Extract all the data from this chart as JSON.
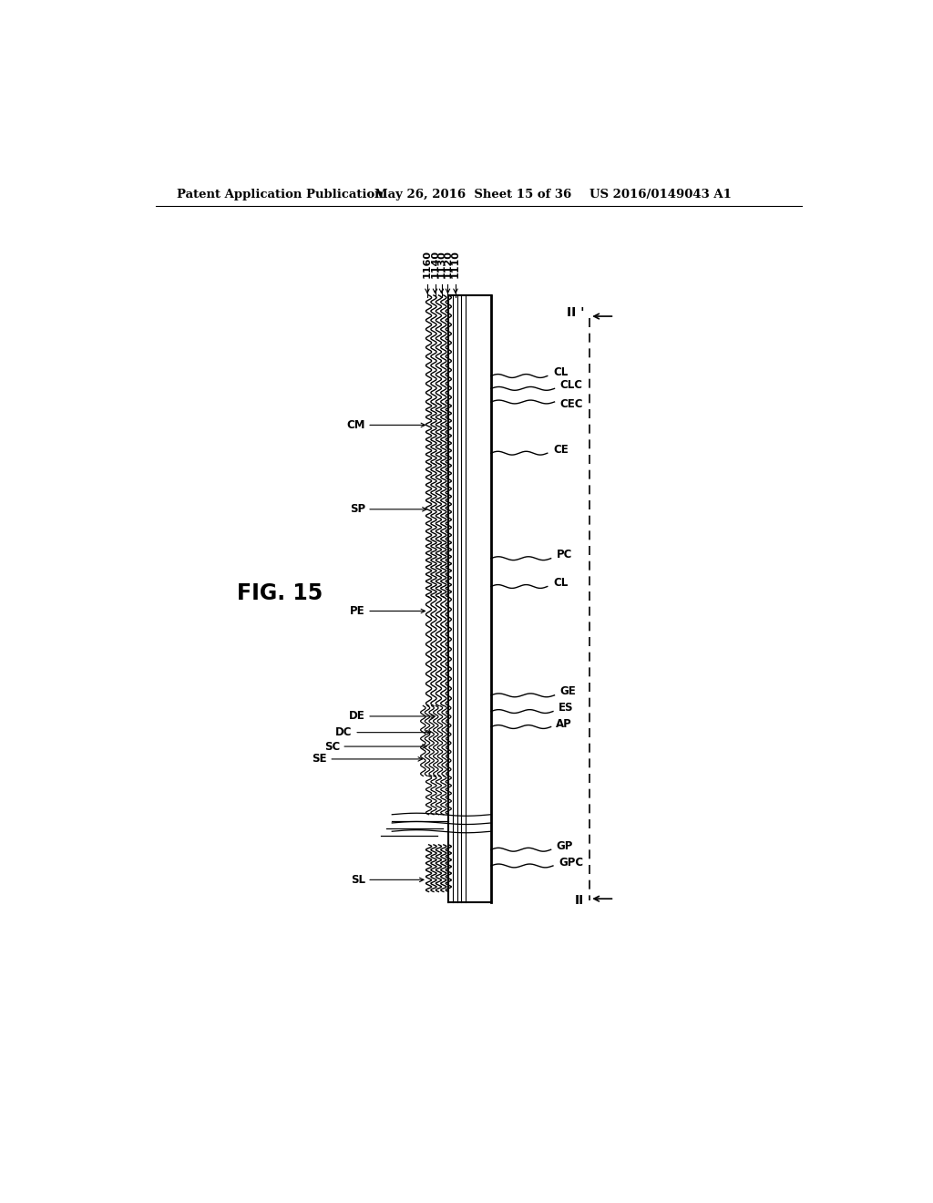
{
  "bg_color": "#ffffff",
  "header_left": "Patent Application Publication",
  "header_mid": "May 26, 2016  Sheet 15 of 36",
  "header_right": "US 2016/0149043 A1",
  "fig_label": "FIG. 15",
  "top_labels": [
    "1160",
    "1140",
    "1130",
    "1120",
    "1110"
  ],
  "section_label_top": "II '",
  "section_label_bot": "II"
}
